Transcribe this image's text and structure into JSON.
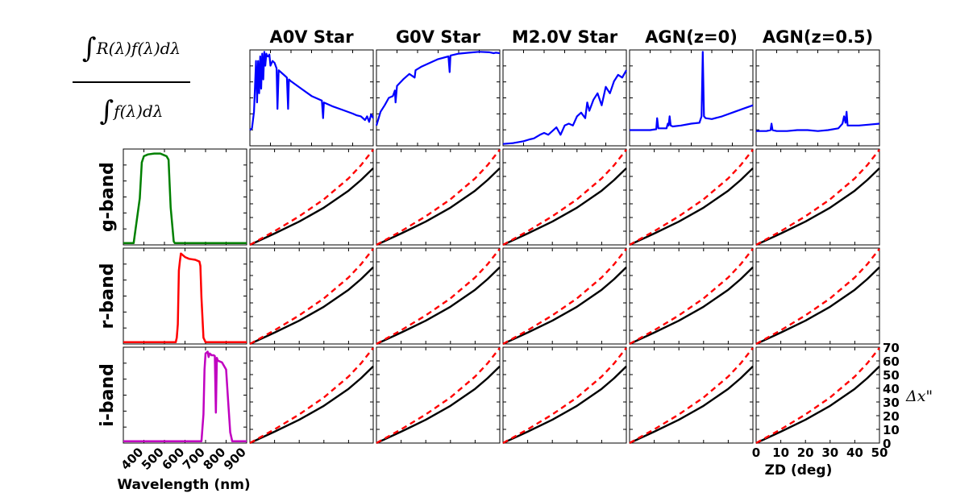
{
  "figure": {
    "formula_numerator": "R(λ)f(λ)dλ",
    "formula_denominator": "f(λ)dλ",
    "formula_integral": "∫",
    "y_unit_label": "Δx\""
  },
  "chart_data": {
    "type": "line",
    "columns": [
      "A0V Star",
      "G0V Star",
      "M2.0V Star",
      "AGN(z=0)",
      "AGN(z=0.5)"
    ],
    "rows": [
      "g-band",
      "r-band",
      "i-band"
    ],
    "band_panels": {
      "xlabel": "Wavelength (nm)",
      "xlim": [
        300,
        900
      ],
      "xticks": [
        400,
        500,
        600,
        700,
        800,
        900
      ],
      "series": [
        {
          "band": "g-band",
          "color": "#008000",
          "x": [
            300,
            350,
            380,
            390,
            400,
            420,
            450,
            480,
            500,
            510,
            520,
            530,
            545,
            550,
            900
          ],
          "y": [
            0,
            0,
            0.5,
            0.9,
            0.97,
            0.99,
            1.0,
            1.0,
            0.98,
            0.97,
            0.93,
            0.4,
            0.02,
            0,
            0
          ]
        },
        {
          "band": "r-band",
          "color": "#ff0000",
          "x": [
            300,
            555,
            560,
            565,
            570,
            575,
            580,
            600,
            620,
            650,
            670,
            675,
            680,
            690,
            700,
            900
          ],
          "y": [
            0,
            0,
            0.05,
            0.2,
            0.8,
            0.9,
            0.99,
            0.95,
            0.93,
            0.92,
            0.9,
            0.85,
            0.5,
            0.05,
            0,
            0
          ]
        },
        {
          "band": "i-band",
          "color": "#c000c0",
          "x": [
            300,
            680,
            690,
            695,
            700,
            710,
            715,
            720,
            730,
            740,
            745,
            750,
            755,
            760,
            780,
            800,
            810,
            820,
            830,
            900
          ],
          "y": [
            0,
            0,
            0.3,
            0.8,
            0.98,
            1.0,
            0.94,
            0.98,
            0.96,
            0.96,
            0.95,
            0.32,
            0.93,
            0.9,
            0.88,
            0.8,
            0.45,
            0.1,
            0,
            0
          ]
        }
      ]
    },
    "spectra": [
      {
        "name": "A0V Star",
        "x": [
          300,
          310,
          320,
          330,
          335,
          340,
          345,
          350,
          355,
          360,
          365,
          370,
          375,
          380,
          385,
          390,
          395,
          400,
          410,
          420,
          430,
          434,
          440,
          450,
          470,
          480,
          486,
          490,
          500,
          550,
          600,
          650,
          656,
          660,
          700,
          750,
          800,
          820,
          840,
          860,
          870,
          880,
          890,
          900
        ],
        "y": [
          0.15,
          0.17,
          0.35,
          0.9,
          0.45,
          0.9,
          0.55,
          0.95,
          0.6,
          0.98,
          0.7,
          1.0,
          0.85,
          0.98,
          0.95,
          0.95,
          0.97,
          0.85,
          0.9,
          0.88,
          0.82,
          0.38,
          0.8,
          0.78,
          0.74,
          0.72,
          0.38,
          0.7,
          0.68,
          0.6,
          0.52,
          0.47,
          0.28,
          0.45,
          0.41,
          0.37,
          0.33,
          0.31,
          0.3,
          0.26,
          0.3,
          0.24,
          0.32,
          0.28
        ]
      },
      {
        "name": "G0V Star",
        "x": [
          300,
          320,
          340,
          360,
          380,
          390,
          393,
          397,
          400,
          430,
          460,
          486,
          490,
          520,
          560,
          600,
          650,
          656,
          660,
          700,
          750,
          800,
          850,
          870,
          880,
          900
        ],
        "y": [
          0.2,
          0.35,
          0.42,
          0.5,
          0.52,
          0.58,
          0.45,
          0.55,
          0.63,
          0.7,
          0.76,
          0.72,
          0.8,
          0.84,
          0.88,
          0.92,
          0.95,
          0.78,
          0.96,
          0.98,
          0.99,
          1.0,
          0.995,
          0.985,
          0.99,
          0.985
        ]
      },
      {
        "name": "M2.0V Star",
        "x": [
          300,
          350,
          400,
          430,
          450,
          480,
          500,
          520,
          540,
          560,
          580,
          600,
          620,
          640,
          660,
          680,
          700,
          710,
          720,
          740,
          760,
          780,
          800,
          820,
          840,
          860,
          880,
          900
        ],
        "y": [
          0.0,
          0.01,
          0.03,
          0.05,
          0.06,
          0.1,
          0.12,
          0.1,
          0.14,
          0.18,
          0.1,
          0.2,
          0.22,
          0.2,
          0.3,
          0.34,
          0.28,
          0.45,
          0.36,
          0.48,
          0.55,
          0.42,
          0.62,
          0.55,
          0.68,
          0.75,
          0.72,
          0.8
        ]
      },
      {
        "name": "AGN(z=0)",
        "x": [
          300,
          350,
          400,
          430,
          434,
          440,
          480,
          486,
          490,
          495,
          500,
          510,
          550,
          600,
          640,
          650,
          656,
          662,
          670,
          700,
          750,
          800,
          850,
          900
        ],
        "y": [
          0.15,
          0.15,
          0.15,
          0.16,
          0.28,
          0.17,
          0.17,
          0.22,
          0.2,
          0.3,
          0.2,
          0.19,
          0.2,
          0.22,
          0.23,
          0.3,
          1.0,
          0.3,
          0.28,
          0.27,
          0.3,
          0.34,
          0.38,
          0.42
        ]
      },
      {
        "name": "AGN(z=0.5)",
        "x": [
          300,
          350,
          370,
          375,
          380,
          400,
          450,
          500,
          550,
          600,
          650,
          700,
          720,
          728,
          735,
          740,
          745,
          760,
          800,
          850,
          900
        ],
        "y": [
          0.14,
          0.14,
          0.15,
          0.22,
          0.15,
          0.14,
          0.14,
          0.15,
          0.15,
          0.14,
          0.15,
          0.17,
          0.22,
          0.3,
          0.23,
          0.35,
          0.2,
          0.2,
          0.2,
          0.21,
          0.22
        ]
      }
    ],
    "refraction_panels": {
      "xlabel": "ZD (deg)",
      "xlim": [
        0,
        50
      ],
      "ylim": [
        0,
        70
      ],
      "xticks": [
        0,
        10,
        20,
        30,
        40,
        50
      ],
      "yticks": [
        0,
        10,
        20,
        30,
        40,
        50,
        60,
        70
      ],
      "series": [
        {
          "style": "solid",
          "color": "#000000",
          "x": [
            0,
            10,
            20,
            30,
            40,
            45,
            50
          ],
          "y": [
            0,
            8.3,
            17.0,
            27.2,
            39.6,
            47.3,
            56.0
          ]
        },
        {
          "style": "dashed",
          "color": "#ff0000",
          "x": [
            0,
            10,
            20,
            30,
            40,
            45,
            50
          ],
          "y": [
            0,
            10.0,
            20.9,
            33.3,
            48.6,
            58.1,
            69.5
          ]
        }
      ]
    }
  }
}
